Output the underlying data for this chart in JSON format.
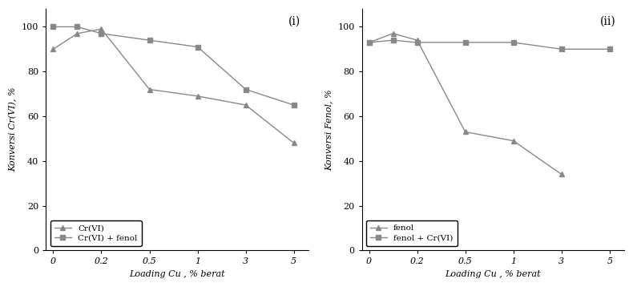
{
  "x_tick_labels": [
    "0",
    "0.2",
    "0.5",
    "1",
    "3",
    "5"
  ],
  "x_positions": [
    0,
    1,
    2,
    3,
    4,
    5
  ],
  "plot1": {
    "title": "(i)",
    "ylabel": "Konversi Cr(VI), %",
    "xlabel": "Loading Cu , % berat",
    "series1_label": "Cr(VI)",
    "series1_x_idx": [
      0,
      0.5,
      1,
      2,
      3,
      4,
      5
    ],
    "series1_y": [
      90,
      97,
      99,
      72,
      69,
      65,
      48
    ],
    "series2_label": "Cr(VI) + fenol",
    "series2_x_idx": [
      0,
      0.5,
      1,
      2,
      3,
      4,
      5
    ],
    "series2_y": [
      100,
      100,
      97,
      94,
      91,
      72,
      65
    ],
    "ylim": [
      0,
      108
    ],
    "yticks": [
      0,
      20,
      40,
      60,
      80,
      100
    ]
  },
  "plot2": {
    "title": "(ii)",
    "ylabel": "Konversi Fenol, %",
    "xlabel": "Loading Cu , % berat",
    "series1_label": "fenol",
    "series1_x_idx": [
      0,
      0.5,
      1,
      2,
      3,
      4
    ],
    "series1_y": [
      93,
      97,
      94,
      53,
      49,
      34
    ],
    "series2_label": "fenol + Cr(VI)",
    "series2_x_idx": [
      0,
      0.5,
      1,
      2,
      3,
      4,
      5
    ],
    "series2_y": [
      93,
      94,
      93,
      93,
      93,
      90,
      90
    ],
    "ylim": [
      0,
      108
    ],
    "yticks": [
      0,
      20,
      40,
      60,
      80,
      100
    ]
  },
  "line_color": "#888888",
  "marker_triangle": "^",
  "marker_square": "s",
  "marker_size": 5,
  "marker_size_sq": 5,
  "line_width": 1.0,
  "font_size_label": 8,
  "font_size_tick": 8,
  "font_size_legend": 7.5,
  "font_size_title": 10,
  "legend_loc": "lower left"
}
